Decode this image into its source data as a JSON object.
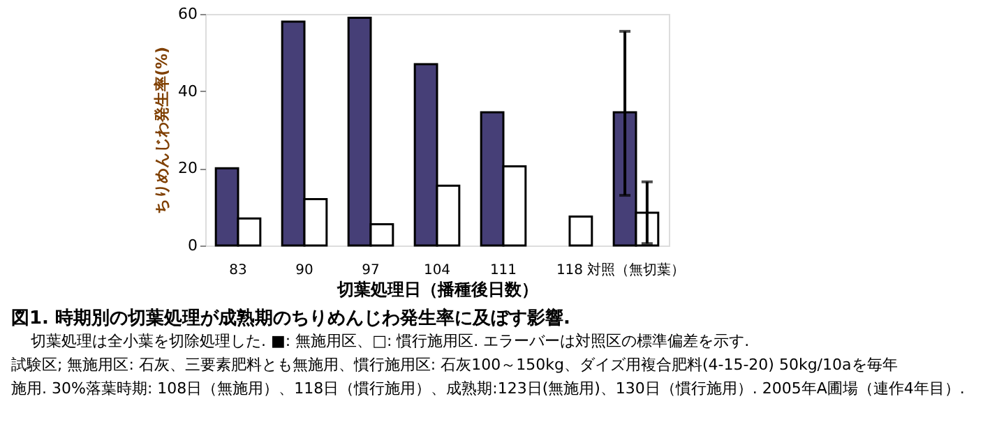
{
  "chart_data": {
    "type": "bar",
    "title": "図1. 時期別の切葉処理が成熟期のちりめんじわ発生率に及ぼす影響.",
    "xlabel": "切葉処理日（播種後日数）",
    "ylabel": "ちりめんじわ発生率(%)",
    "categories": [
      "83",
      "90",
      "97",
      "104",
      "111",
      "118",
      "対照（無切葉）"
    ],
    "series": [
      {
        "color": "#463f77",
        "values": [
          20,
          58,
          59,
          47,
          34.5,
          null,
          34.5
        ],
        "errors": [
          null,
          null,
          null,
          null,
          null,
          null,
          [
            13,
            55.5
          ]
        ]
      },
      {
        "color": "#ffffff",
        "values": [
          7,
          12,
          5.5,
          15.5,
          20.5,
          7.5,
          8.5
        ],
        "errors": [
          null,
          null,
          null,
          null,
          null,
          null,
          [
            0.5,
            16.5
          ]
        ]
      }
    ],
    "ylim": [
      0,
      60
    ],
    "yticks": [
      0,
      20,
      40,
      60
    ],
    "grid": false,
    "annotations": [
      "切葉処理は全小葉を切除処理した. ■: 無施用区、□: 慣行施用区. エラーバーは対照区の標準偏差を示す.",
      "試験区; 無施用区: 石灰、三要素肥料とも無施用、慣行施用区: 石灰100～150kg、ダイズ用複合肥料(4-15-20) 50kg/10aを毎年",
      "施用. 30%落葉時期: 108日（無施用）、118日（慣行施用）、成熟期:123日(無施用)、130日（慣行施用）. 2005年A圃場（連作4年目）."
    ]
  }
}
